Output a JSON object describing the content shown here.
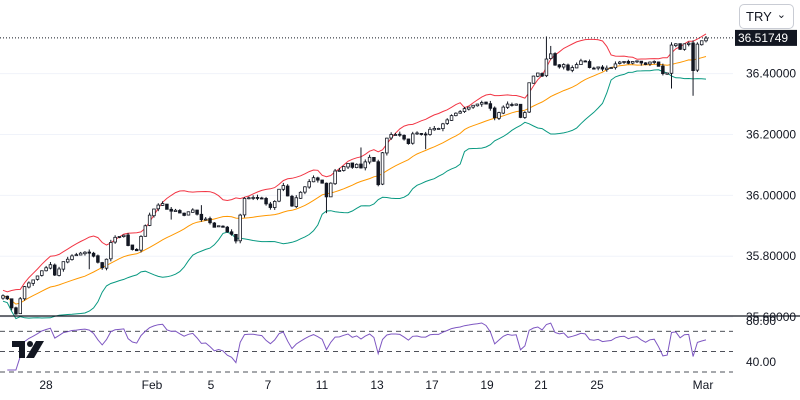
{
  "currency_selector": {
    "value": "TRY",
    "chevron_icon": "chevron-down-icon"
  },
  "brand_logo": {
    "text": "TV",
    "icon": "tradingview-logo"
  },
  "price_label": "36.51749",
  "colors": {
    "up_candle": "#ffffff",
    "down_candle": "#131722",
    "upper_band": "#f23645",
    "lower_band": "#089981",
    "middle_band": "#ff9800",
    "rsi_line": "#7e57c2",
    "price_label_bg": "#131722"
  },
  "chart_data": [
    {
      "type": "candlestick",
      "overlay": "bollinger_bands",
      "y_axis": {
        "ticks": [
          "35.60000",
          "35.80000",
          "36.00000",
          "36.20000",
          "36.40000"
        ],
        "ylim": [
          35.61,
          36.55
        ]
      },
      "x_axis": {
        "ticks": [
          "28",
          "Feb",
          "5",
          "7",
          "11",
          "13",
          "17",
          "19",
          "21",
          "25",
          "Mar"
        ]
      },
      "last_price": 36.51749,
      "close": [
        35.67,
        35.66,
        35.63,
        35.61,
        35.66,
        35.7,
        35.712,
        35.722,
        35.735,
        35.752,
        35.762,
        35.772,
        35.738,
        35.758,
        35.782,
        35.79,
        35.801,
        35.805,
        35.81,
        35.813,
        35.81,
        35.8,
        35.78,
        35.762,
        35.79,
        35.845,
        35.862,
        35.865,
        35.869,
        35.835,
        35.822,
        35.818,
        35.865,
        35.9,
        35.935,
        35.955,
        35.968,
        35.973,
        35.954,
        35.948,
        35.951,
        35.942,
        35.934,
        35.946,
        35.952,
        35.938,
        35.92,
        35.922,
        35.91,
        35.895,
        35.9,
        35.895,
        35.88,
        35.872,
        35.85,
        35.935,
        35.99,
        35.992,
        35.993,
        35.99,
        35.988,
        35.972,
        35.96,
        35.98,
        36.02,
        36.032,
        35.998,
        35.965,
        35.992,
        36.01,
        36.028,
        36.045,
        36.058,
        36.05,
        36.04,
        35.995,
        36.04,
        36.08,
        36.082,
        36.095,
        36.105,
        36.092,
        36.102,
        36.09,
        36.11,
        36.125,
        36.112,
        36.035,
        36.14,
        36.188,
        36.2,
        36.2,
        36.198,
        36.185,
        36.17,
        36.202,
        36.205,
        36.2,
        36.2,
        36.217,
        36.22,
        36.22,
        36.235,
        36.248,
        36.262,
        36.27,
        36.275,
        36.285,
        36.29,
        36.296,
        36.3,
        36.305,
        36.3,
        36.286,
        36.255,
        36.272,
        36.29,
        36.3,
        36.298,
        36.3,
        36.256,
        36.272,
        36.37,
        36.392,
        36.402,
        36.392,
        36.448,
        36.465,
        36.428,
        36.422,
        36.43,
        36.412,
        36.42,
        36.43,
        36.442,
        36.44,
        36.42,
        36.418,
        36.422,
        36.415,
        36.418,
        36.42,
        36.432,
        36.438,
        36.44,
        36.434,
        36.44,
        36.442,
        36.435,
        36.43,
        36.438,
        36.44,
        36.424,
        36.4,
        36.402,
        36.494,
        36.498,
        36.48,
        36.498,
        36.5,
        36.41,
        36.497,
        36.508,
        36.517
      ]
    },
    {
      "type": "line",
      "indicator": "RSI",
      "y_axis": {
        "ticks": [
          "80.00",
          "40.00"
        ],
        "ylim": [
          30,
          85
        ]
      },
      "levels": [
        70,
        50,
        30
      ]
    }
  ]
}
